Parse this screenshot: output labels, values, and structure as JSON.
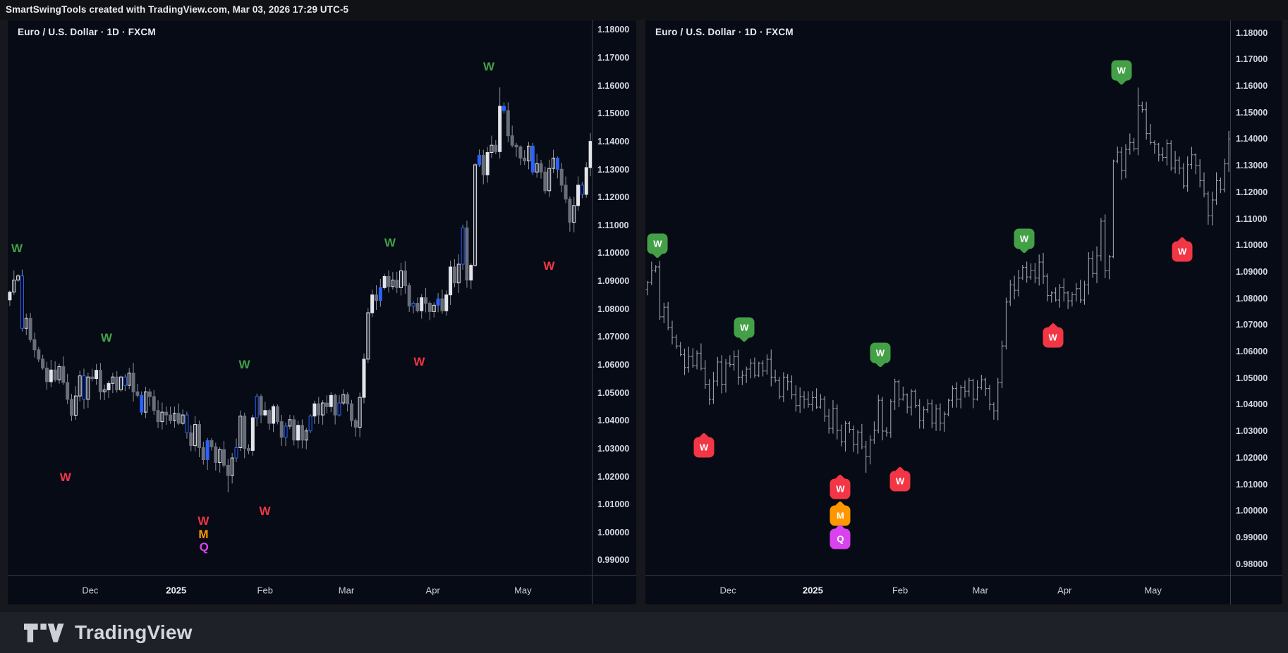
{
  "header": {
    "text": "SmartSwingTools created with TradingView.com, Mar 03, 2026 17:29 UTC-5"
  },
  "footer": {
    "brand": "TradingView"
  },
  "colors": {
    "green": "#43a047",
    "red": "#f23645",
    "orange": "#ff9800",
    "magenta": "#d943ef",
    "candle_up": "#e3e5ea",
    "candle_down": "#696e7a",
    "candle_signal": "#2962ff",
    "wick": "#8b909c",
    "ohlc_bar": "#9aa0ab",
    "panel_bg": "#070b15",
    "axis_line": "#3a3e48"
  },
  "chart_data": {
    "symbol_title": "Euro / U.S. Dollar · 1D · FXCM",
    "symbol": "EUR/USD",
    "timeframe": "1D",
    "exchange": "FXCM",
    "closes": [
      1.0862,
      1.0905,
      1.092,
      1.0732,
      1.0768,
      1.0692,
      1.0655,
      1.0622,
      1.059,
      1.0541,
      1.0583,
      1.0548,
      1.0595,
      1.0538,
      1.0478,
      1.0421,
      1.049,
      1.0562,
      1.0478,
      1.0558,
      1.0552,
      1.0582,
      1.0505,
      1.0512,
      1.0535,
      1.0558,
      1.0512,
      1.0558,
      1.0528,
      1.0572,
      1.0505,
      1.0492,
      1.0432,
      1.0505,
      1.0488,
      1.0438,
      1.0398,
      1.0432,
      1.0422,
      1.0402,
      1.0428,
      1.0392,
      1.0422,
      1.0358,
      1.0312,
      1.0388,
      1.0305,
      1.0262,
      1.033,
      1.0308,
      1.0252,
      1.0298,
      1.0242,
      1.0205,
      1.0268,
      1.0305,
      1.0418,
      1.0302,
      1.0295,
      1.0412,
      1.0488,
      1.0422,
      1.0438,
      1.0392,
      1.0452,
      1.0398,
      1.0342,
      1.0382,
      1.0405,
      1.0332,
      1.0385,
      1.0332,
      1.0365,
      1.0418,
      1.0462,
      1.0422,
      1.0465,
      1.0452,
      1.0492,
      1.0422,
      1.0465,
      1.0495,
      1.0462,
      1.0402,
      1.0378,
      1.0485,
      1.0622,
      1.0788,
      1.0852,
      1.0832,
      1.0878,
      1.0918,
      1.0882,
      1.0905,
      1.0878,
      1.0938,
      1.0885,
      1.0812,
      1.0822,
      1.0795,
      1.0842,
      1.0822,
      1.0792,
      1.0815,
      1.0838,
      1.0795,
      1.0852,
      1.0952,
      1.0895,
      1.0962,
      1.1092,
      1.0905,
      1.0958,
      1.1318,
      1.1352,
      1.1282,
      1.1362,
      1.1388,
      1.1365,
      1.1528,
      1.1512,
      1.1422,
      1.1388,
      1.1382,
      1.1342,
      1.1332,
      1.1385,
      1.1292,
      1.1322,
      1.1292,
      1.1225,
      1.1305,
      1.1342,
      1.1302,
      1.1245,
      1.1195,
      1.1112,
      1.1172,
      1.1245,
      1.1212,
      1.1308,
      1.1402
    ],
    "swing_high": {
      "index": 119,
      "price": 1.1595
    },
    "swing_low": {
      "index": 53,
      "price": 1.0145
    },
    "signal_bar_indices": [
      3,
      18,
      28,
      32,
      43,
      48,
      55,
      60,
      67,
      73,
      80,
      90,
      98,
      104,
      110,
      114,
      120,
      127,
      133,
      139
    ],
    "panels": [
      {
        "id": "left",
        "type": "candlestick",
        "y_min": 0.9847,
        "y_max": 1.1835,
        "y_ticks": [
          "1.18000",
          "1.17000",
          "1.16000",
          "1.15000",
          "1.14000",
          "1.13000",
          "1.12000",
          "1.11000",
          "1.10000",
          "1.09000",
          "1.08000",
          "1.07000",
          "1.06000",
          "1.05000",
          "1.04000",
          "1.03000",
          "1.02000",
          "1.01000",
          "1.00000",
          "0.99000"
        ],
        "x_ticks": [
          {
            "label": "Dec",
            "x": 0.141
          },
          {
            "label": "2025",
            "x": 0.288,
            "year": true
          },
          {
            "label": "Feb",
            "x": 0.44
          },
          {
            "label": "Mar",
            "x": 0.579
          },
          {
            "label": "Apr",
            "x": 0.727
          },
          {
            "label": "May",
            "x": 0.881
          }
        ],
        "marker_style": "letter",
        "markers": [
          {
            "label": "W",
            "color": "green",
            "x": 0.016,
            "price": 1.1015
          },
          {
            "label": "W",
            "color": "red",
            "x": 0.099,
            "price": 1.0195
          },
          {
            "label": "W",
            "color": "green",
            "x": 0.169,
            "price": 1.0695
          },
          {
            "label": "W",
            "color": "red",
            "x": 0.335,
            "price": 1.0038
          },
          {
            "label": "M",
            "color": "orange",
            "x": 0.335,
            "price": 0.9992
          },
          {
            "label": "Q",
            "color": "magenta",
            "x": 0.336,
            "price": 0.9946
          },
          {
            "label": "W",
            "color": "green",
            "x": 0.405,
            "price": 1.0598
          },
          {
            "label": "W",
            "color": "red",
            "x": 0.44,
            "price": 1.0073
          },
          {
            "label": "W",
            "color": "green",
            "x": 0.654,
            "price": 1.1035
          },
          {
            "label": "W",
            "color": "red",
            "x": 0.704,
            "price": 1.061
          },
          {
            "label": "W",
            "color": "green",
            "x": 0.823,
            "price": 1.1666
          },
          {
            "label": "W",
            "color": "red",
            "x": 0.926,
            "price": 1.0952
          }
        ]
      },
      {
        "id": "right",
        "type": "ohlc-bar",
        "y_min": 0.9758,
        "y_max": 1.1848,
        "y_ticks": [
          "1.18000",
          "1.17000",
          "1.16000",
          "1.15000",
          "1.14000",
          "1.13000",
          "1.12000",
          "1.11000",
          "1.10000",
          "1.09000",
          "1.08000",
          "1.07000",
          "1.06000",
          "1.05000",
          "1.04000",
          "1.03000",
          "1.02000",
          "1.01000",
          "1.00000",
          "0.99000",
          "0.98000"
        ],
        "x_ticks": [
          {
            "label": "Dec",
            "x": 0.141
          },
          {
            "label": "2025",
            "x": 0.286,
            "year": true
          },
          {
            "label": "Feb",
            "x": 0.435
          },
          {
            "label": "Mar",
            "x": 0.572
          },
          {
            "label": "Apr",
            "x": 0.716
          },
          {
            "label": "May",
            "x": 0.867
          }
        ],
        "marker_style": "badge",
        "markers": [
          {
            "label": "W",
            "color": "green",
            "x": 0.021,
            "price": 1.1007,
            "dir": "down"
          },
          {
            "label": "W",
            "color": "red",
            "x": 0.1,
            "price": 1.0241,
            "dir": "up"
          },
          {
            "label": "W",
            "color": "green",
            "x": 0.169,
            "price": 1.0692,
            "dir": "down"
          },
          {
            "label": "W",
            "color": "red",
            "x": 0.333,
            "price": 1.0084,
            "dir": "up"
          },
          {
            "label": "M",
            "color": "orange",
            "x": 0.333,
            "price": 0.9983,
            "dir": "up"
          },
          {
            "label": "Q",
            "color": "magenta",
            "x": 0.333,
            "price": 0.9896,
            "dir": "up"
          },
          {
            "label": "W",
            "color": "green",
            "x": 0.401,
            "price": 1.0596,
            "dir": "down"
          },
          {
            "label": "W",
            "color": "red",
            "x": 0.435,
            "price": 1.0113,
            "dir": "up"
          },
          {
            "label": "W",
            "color": "green",
            "x": 0.647,
            "price": 1.1026,
            "dir": "down"
          },
          {
            "label": "W",
            "color": "red",
            "x": 0.696,
            "price": 1.0654,
            "dir": "up"
          },
          {
            "label": "W",
            "color": "green",
            "x": 0.813,
            "price": 1.166,
            "dir": "down"
          },
          {
            "label": "W",
            "color": "red",
            "x": 0.917,
            "price": 1.0978,
            "dir": "up"
          }
        ]
      }
    ]
  }
}
